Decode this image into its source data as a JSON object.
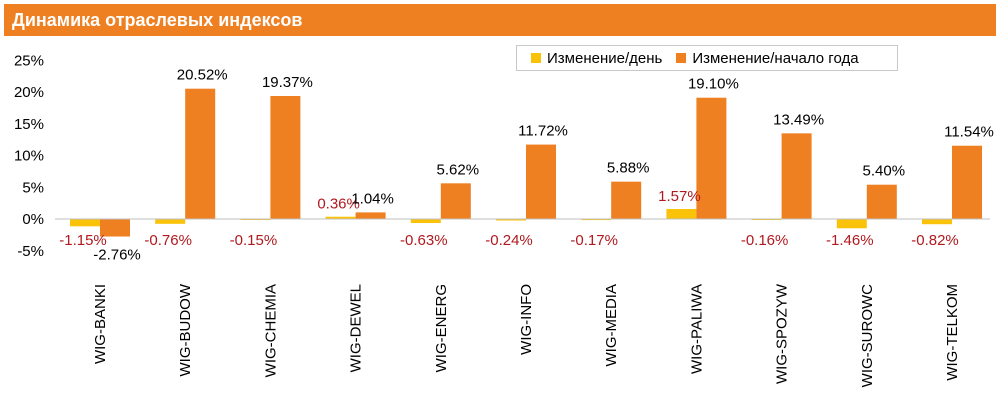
{
  "title": "Динамика отраслевых индексов",
  "colors": {
    "title_bg": "#ef8022",
    "day_series": "#fbc20a",
    "year_series": "#ef8022",
    "day_label": "#b0191e",
    "year_label": "#000000"
  },
  "chart_data": {
    "type": "bar",
    "title": "Динамика отраслевых индексов",
    "categories": [
      "WIG-BANKI",
      "WIG-BUDOW",
      "WIG-CHEMIA",
      "WIG-DEWEL",
      "WIG-ENERG",
      "WIG-INFO",
      "WIG-MEDIA",
      "WIG-PALIWA",
      "WIG-SPOZYW",
      "WIG-SUROWC",
      "WIG-TELKOM"
    ],
    "series": [
      {
        "name": "Изменение/день",
        "values": [
          -1.15,
          -0.76,
          -0.15,
          0.36,
          -0.63,
          -0.24,
          -0.17,
          1.57,
          -0.16,
          -1.46,
          -0.82
        ],
        "labels": [
          "-1.15%",
          "-0.76%",
          "-0.15%",
          "0.36%",
          "-0.63%",
          "-0.24%",
          "-0.17%",
          "1.57%",
          "-0.16%",
          "-1.46%",
          "-0.82%"
        ]
      },
      {
        "name": "Изменение/начало года",
        "values": [
          -2.76,
          20.52,
          19.37,
          1.04,
          5.62,
          11.72,
          5.88,
          19.1,
          13.49,
          5.4,
          11.54
        ],
        "labels": [
          "-2.76%",
          "20.52%",
          "19.37%",
          "1.04%",
          "5.62%",
          "11.72%",
          "5.88%",
          "19.10%",
          "13.49%",
          "5.40%",
          "11.54%"
        ]
      }
    ],
    "yticks": [
      "-5%",
      "0%",
      "5%",
      "10%",
      "15%",
      "20%",
      "25%"
    ],
    "ylim": [
      -5,
      25
    ],
    "legend_position": "top-right",
    "grid": false
  }
}
